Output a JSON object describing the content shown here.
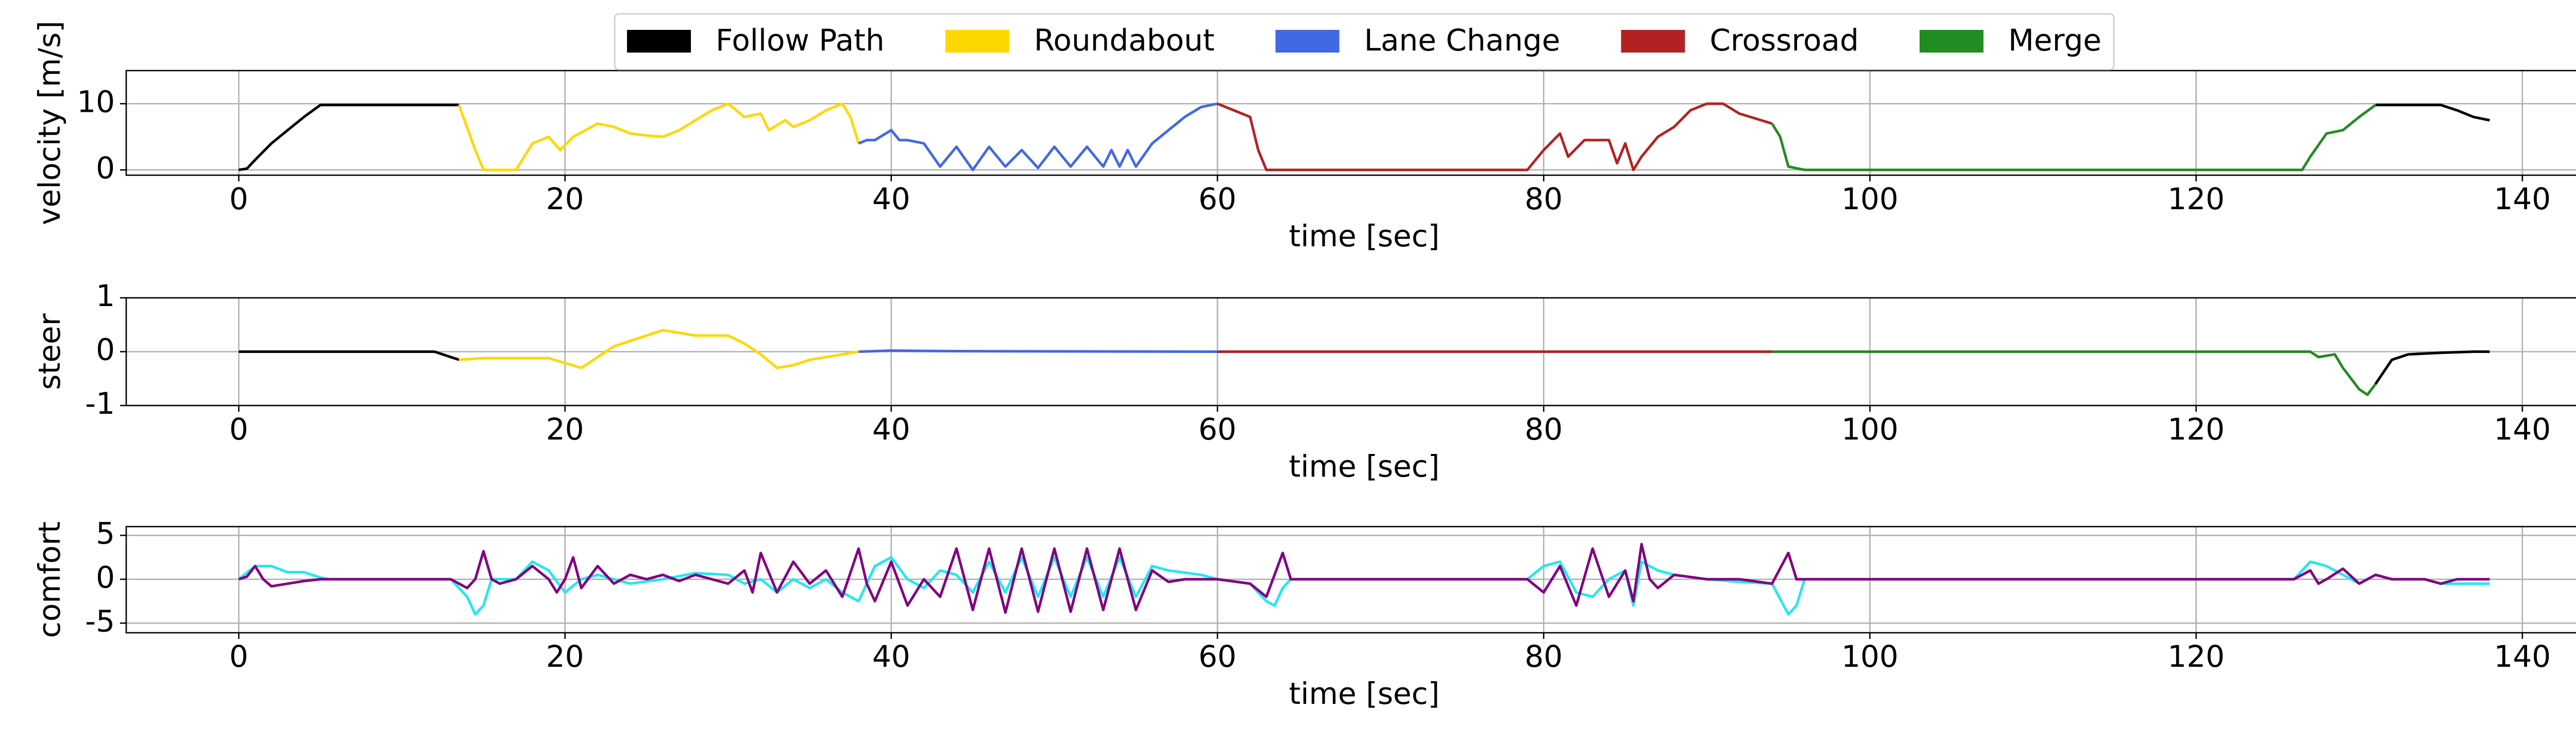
{
  "chart_data": [
    {
      "type": "line",
      "ylabel": "velocity [m/s]",
      "xlabel": "time [sec]",
      "legend": "upper center",
      "grid": true,
      "xlim": [
        -6.9,
        144.9
      ],
      "xticks": [
        0,
        20,
        40,
        60,
        80,
        100,
        120,
        140
      ],
      "ylim": [
        -0.8,
        15
      ],
      "yticks": [
        0,
        10
      ],
      "series": [
        {
          "name": "Follow Path",
          "color": "#000000",
          "x": [
            0,
            0.5,
            1,
            2,
            3,
            4,
            5,
            6,
            13.5,
            70,
            131,
            135,
            136,
            137,
            138
          ],
          "values": [
            0,
            0.2,
            1.5,
            4,
            6,
            8,
            9.8,
            9.8,
            9.8,
            null,
            9.8,
            9.8,
            9,
            8,
            7.5
          ]
        },
        {
          "name": "Roundabout",
          "color": "#ffd700",
          "x": [
            13.5,
            14.5,
            15,
            17,
            18,
            19,
            19.7,
            20.5,
            22,
            23,
            24,
            25,
            26,
            27,
            28,
            29,
            30,
            31,
            32,
            32.5,
            33.5,
            34,
            35,
            36,
            37,
            37.5,
            38
          ],
          "values": [
            9.8,
            3,
            0,
            0,
            4,
            5,
            3,
            5,
            7,
            6.5,
            5.5,
            5.2,
            5,
            6,
            7.5,
            9,
            10,
            8,
            8.5,
            6,
            7.5,
            6.5,
            7.5,
            9,
            10,
            8,
            4
          ]
        },
        {
          "name": "Lane Change",
          "color": "#4169e1",
          "x": [
            38,
            38.5,
            39,
            40,
            40.5,
            41,
            42,
            43,
            44,
            45,
            46,
            47,
            48,
            49,
            50,
            51,
            52,
            53,
            53.5,
            54,
            54.5,
            55,
            56,
            57,
            58,
            59,
            60
          ],
          "values": [
            4,
            4.5,
            4.5,
            6,
            4.5,
            4.5,
            4,
            0.5,
            3.5,
            0,
            3.5,
            0.5,
            3,
            0.3,
            3.5,
            0.5,
            3.5,
            0.5,
            3,
            0.5,
            3,
            0.5,
            4,
            6,
            8,
            9.5,
            10
          ]
        },
        {
          "name": "Crossroad",
          "color": "#b22222",
          "x": [
            60,
            62,
            62.5,
            63,
            79,
            80,
            81,
            81.5,
            82.5,
            84,
            84.5,
            85,
            85.5,
            86,
            87,
            88,
            89,
            90,
            91,
            92,
            94
          ],
          "values": [
            10,
            8,
            3,
            0,
            0,
            3,
            5.5,
            2,
            4.5,
            4.5,
            1,
            4,
            0,
            2,
            5,
            6.5,
            9,
            10,
            10,
            8.5,
            7
          ]
        },
        {
          "name": "Merge",
          "color": "#228b22",
          "x": [
            94,
            94.5,
            95,
            96,
            126.5,
            127,
            128,
            129,
            130,
            131
          ],
          "values": [
            7,
            5,
            0.5,
            0,
            0,
            2,
            5.5,
            6,
            8,
            9.8
          ]
        }
      ]
    },
    {
      "type": "line",
      "ylabel": "steer",
      "xlabel": "time [sec]",
      "grid": true,
      "xlim": [
        -6.9,
        144.9
      ],
      "xticks": [
        0,
        20,
        40,
        60,
        80,
        100,
        120,
        140
      ],
      "ylim": [
        -1,
        1
      ],
      "yticks": [
        -1,
        0,
        1
      ],
      "series": [
        {
          "color": "#000000",
          "x": [
            0,
            12,
            12.5,
            13,
            13.5,
            70,
            131,
            132,
            133,
            135,
            137,
            138
          ],
          "values": [
            0,
            0,
            -0.05,
            -0.1,
            -0.15,
            null,
            -0.6,
            -0.15,
            -0.05,
            -0.02,
            0,
            0
          ]
        },
        {
          "color": "#ffd700",
          "x": [
            13.5,
            15,
            19,
            21,
            22,
            23,
            24,
            25,
            26,
            27,
            28,
            30,
            31,
            32,
            33,
            34,
            35,
            36,
            38
          ],
          "values": [
            -0.15,
            -0.12,
            -0.12,
            -0.3,
            -0.1,
            0.1,
            0.2,
            0.3,
            0.4,
            0.35,
            0.3,
            0.3,
            0.15,
            -0.05,
            -0.3,
            -0.25,
            -0.15,
            -0.1,
            0
          ]
        },
        {
          "color": "#4169e1",
          "x": [
            38,
            40,
            44,
            60
          ],
          "values": [
            0,
            0.02,
            0.01,
            0
          ]
        },
        {
          "color": "#b22222",
          "x": [
            60,
            94
          ],
          "values": [
            0,
            0
          ]
        },
        {
          "color": "#228b22",
          "x": [
            94,
            127,
            127.5,
            128.5,
            129,
            130,
            130.5,
            131
          ],
          "values": [
            0,
            0,
            -0.1,
            -0.05,
            -0.3,
            -0.7,
            -0.8,
            -0.6
          ]
        }
      ]
    },
    {
      "type": "line",
      "ylabel": "comfort",
      "xlabel": "time [sec]",
      "grid": true,
      "xlim": [
        -6.9,
        144.9
      ],
      "xticks": [
        0,
        20,
        40,
        60,
        80,
        100,
        120,
        140
      ],
      "ylim": [
        -6.1,
        6
      ],
      "yticks": [
        -5,
        0,
        5
      ],
      "series": [
        {
          "color": "#22e8f0",
          "x": [
            0,
            1,
            2,
            3,
            4,
            5,
            5.5,
            13,
            14,
            14.5,
            15,
            15.5,
            17,
            18,
            19,
            20,
            21,
            22,
            24,
            26,
            28,
            30,
            31,
            32,
            33,
            34,
            35,
            36,
            37,
            38,
            39,
            40,
            41,
            42,
            43,
            44,
            45,
            46,
            47,
            48,
            49,
            50,
            51,
            52,
            53,
            54,
            55,
            56,
            57,
            59,
            60,
            62,
            63,
            63.5,
            64,
            64.5,
            79,
            80,
            81,
            82,
            83,
            84,
            85,
            85.5,
            86,
            87,
            88,
            90,
            92,
            94,
            95,
            95.5,
            96,
            126,
            127,
            128,
            129,
            130,
            131,
            132,
            134,
            135,
            138
          ],
          "values": [
            0,
            1.5,
            1.5,
            0.8,
            0.8,
            0.2,
            0,
            0,
            -2,
            -4,
            -3,
            0,
            0,
            2,
            1,
            -1.5,
            0,
            0.5,
            -0.5,
            0,
            0.7,
            0.5,
            -0.5,
            0,
            -1.5,
            0,
            -1,
            0,
            -1.5,
            -2.5,
            1.5,
            2.5,
            0,
            -1,
            1,
            0.5,
            -1.5,
            2,
            -1.5,
            2.5,
            -2,
            2.5,
            -2,
            2.5,
            -2,
            2.5,
            -2,
            1.5,
            1,
            0.5,
            0,
            -0.5,
            -2.5,
            -3,
            -1,
            0,
            0,
            1.5,
            2,
            -1.5,
            -2,
            0,
            1,
            -3,
            2,
            1,
            0.5,
            0,
            -0.3,
            -0.5,
            -4,
            -3,
            0,
            0,
            2,
            1.5,
            0.5,
            -0.5,
            0.5,
            0,
            0,
            -0.5,
            -0.5
          ]
        },
        {
          "color": "#800080",
          "x": [
            0,
            0.5,
            1,
            1.5,
            2,
            3,
            4,
            5,
            13,
            14,
            14.5,
            15,
            15.5,
            16,
            17,
            18,
            19,
            19.5,
            20,
            20.5,
            21,
            22,
            23,
            24,
            25,
            26,
            27,
            28,
            29,
            30,
            31,
            31.5,
            32,
            33,
            34,
            35,
            36,
            37,
            38,
            38.5,
            39,
            40,
            41,
            42,
            43,
            44,
            45,
            46,
            47,
            48,
            49,
            50,
            51,
            52,
            53,
            54,
            55,
            56,
            57,
            58,
            60,
            62,
            63,
            64,
            64.5,
            79,
            80,
            81,
            82,
            83,
            84,
            85,
            85.5,
            86,
            86.5,
            87,
            88,
            90,
            92,
            94,
            95,
            95.5,
            126,
            127,
            127.5,
            128,
            129,
            130,
            131,
            132,
            134,
            135,
            136,
            138
          ],
          "values": [
            0,
            0.3,
            1.5,
            0,
            -0.8,
            -0.5,
            -0.2,
            0,
            0,
            -1,
            0,
            3.2,
            0,
            -0.5,
            0,
            1.5,
            0,
            -1.5,
            0,
            2.5,
            -1,
            1.5,
            -0.5,
            0.5,
            0,
            0.5,
            -0.2,
            0.5,
            0,
            -0.5,
            1,
            -1.5,
            3,
            -1.5,
            2,
            -0.5,
            1,
            -2,
            3.5,
            -0.5,
            -2.5,
            2,
            -3,
            0,
            -2,
            3.5,
            -3.5,
            3.5,
            -3.8,
            3.5,
            -3.7,
            3.5,
            -3.7,
            3.5,
            -3.5,
            3.5,
            -3.5,
            1,
            -0.3,
            0,
            0,
            -0.5,
            -2,
            3,
            0,
            0,
            -1.5,
            1.5,
            -3,
            3.5,
            -2,
            1,
            -2.5,
            4,
            0,
            -1,
            0.5,
            0,
            0,
            -0.5,
            3,
            0,
            0,
            1,
            -0.5,
            0,
            1.2,
            -0.5,
            0.5,
            0,
            0,
            -0.5,
            0,
            0
          ]
        }
      ]
    }
  ]
}
